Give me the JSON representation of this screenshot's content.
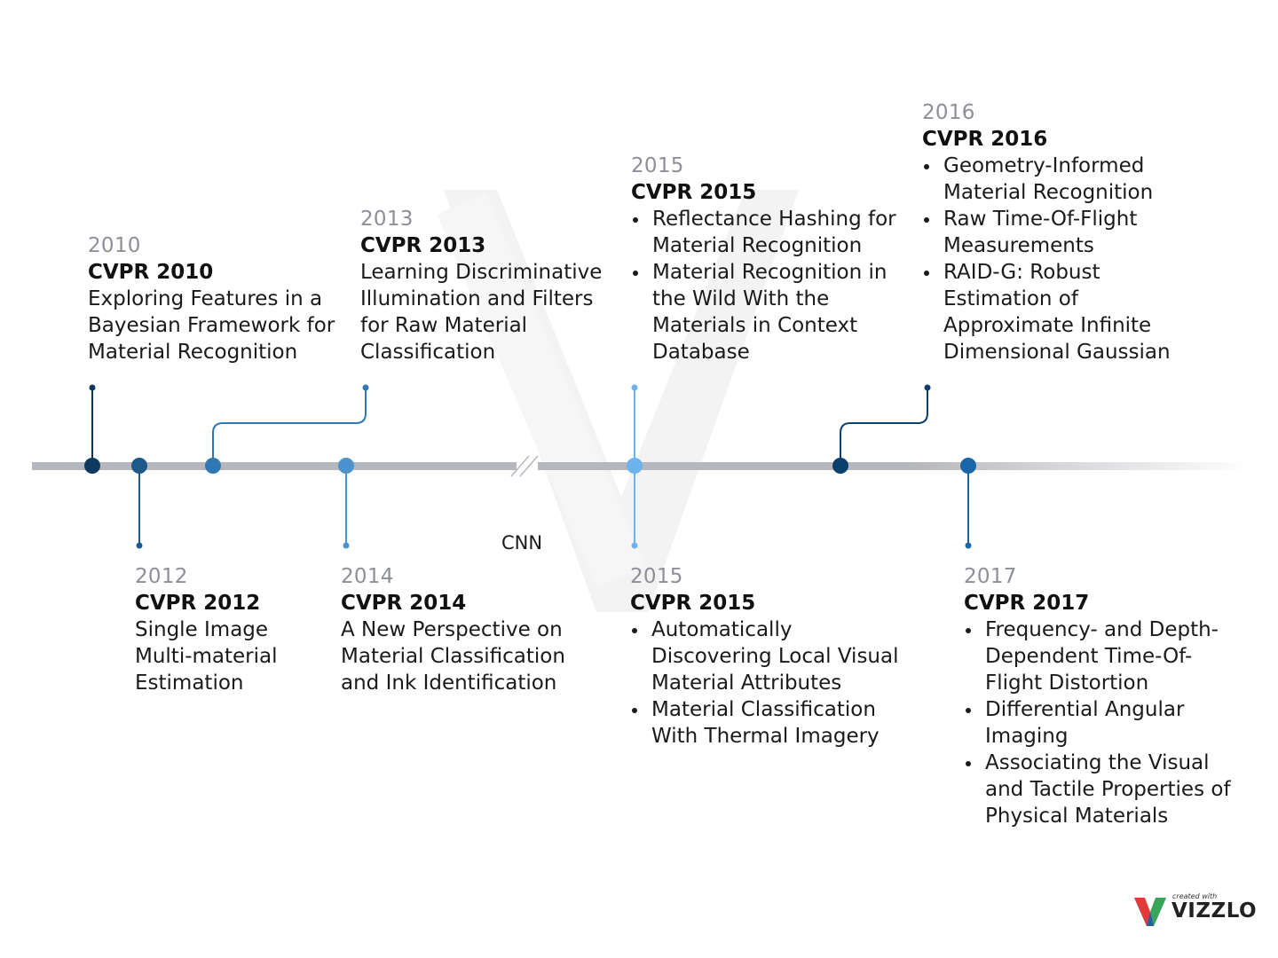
{
  "events": [
    {
      "id": "2010",
      "year": "2010",
      "title": "CVPR 2010",
      "items": [
        "Exploring Features in a Bayesian Framework for Material Recognition"
      ],
      "list": false,
      "color": "#0d3a5e"
    },
    {
      "id": "2012",
      "year": "2012",
      "title": "CVPR 2012",
      "items": [
        "Single Image Multi-material Estimation"
      ],
      "list": false,
      "color": "#1b5a8a"
    },
    {
      "id": "2013",
      "year": "2013",
      "title": "CVPR 2013",
      "items": [
        "Learning Discriminative Illumination and Filters for Raw Material Classification"
      ],
      "list": false,
      "color": "#2f78b3"
    },
    {
      "id": "2014",
      "year": "2014",
      "title": "CVPR 2014",
      "items": [
        "A New Perspective on Material Classification and Ink Identification"
      ],
      "list": false,
      "color": "#4a93cf"
    },
    {
      "id": "2015a",
      "year": "2015",
      "title": "CVPR 2015",
      "items": [
        "Reflectance Hashing for Material Recognition",
        "Material Recognition in the Wild With the Materials in Context Database"
      ],
      "list": true,
      "color": "#6cb2ec"
    },
    {
      "id": "2015b",
      "year": "2015",
      "title": "CVPR 2015",
      "items": [
        "Automatically Discovering Local Visual Material Attributes",
        "Material Classification With Thermal Imagery"
      ],
      "list": true,
      "color": "#6cb2ec"
    },
    {
      "id": "2016",
      "year": "2016",
      "title": "CVPR 2016",
      "items": [
        "Geometry-Informed Material Recognition",
        "Raw Time-Of-Flight Measurements",
        "RAID-G: Robust Estimation of Approximate Infinite Dimensional Gaussian"
      ],
      "list": true,
      "color": "#0d3f6b"
    },
    {
      "id": "2017",
      "year": "2017",
      "title": "CVPR 2017",
      "items": [
        "Frequency- and Depth-Dependent Time-Of-Flight Distortion",
        "Differential Angular Imaging",
        "Associating the Visual and Tactile Properties of Physical Materials"
      ],
      "list": true,
      "color": "#1a66a6"
    }
  ],
  "cnn_label": "CNN",
  "branding": {
    "small": "created with",
    "name": "VIZZLO"
  },
  "colors": {
    "axis": "#b6b7bc",
    "watermark": "#f1f1f2"
  }
}
